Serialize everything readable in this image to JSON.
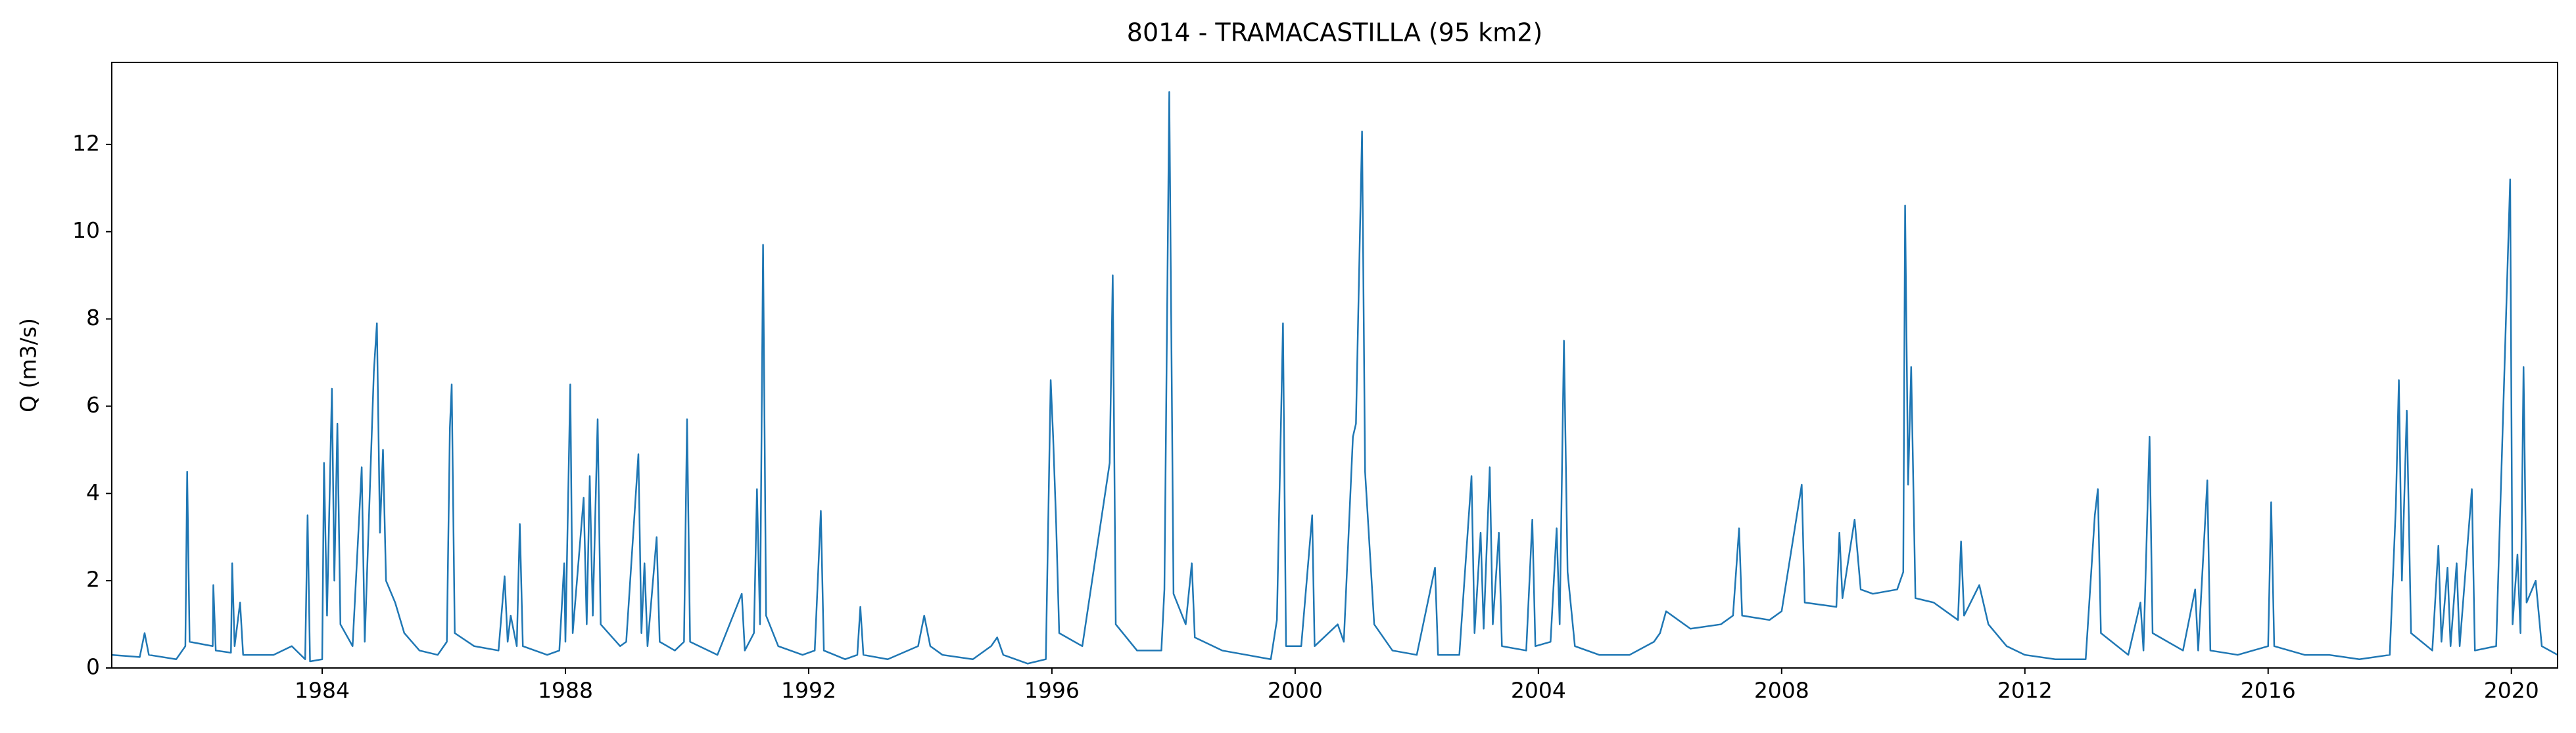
{
  "chart_data": {
    "type": "line",
    "title": "8014 - TRAMACASTILLA (95 km2)",
    "ylabel": "Q (m3/s)",
    "color": "#1f77b4",
    "xlim": [
      1980.54,
      2020.76
    ],
    "xticks": [
      1984,
      1988,
      1992,
      1996,
      2000,
      2004,
      2008,
      2012,
      2016,
      2020
    ],
    "ylim": [
      0,
      13.88
    ],
    "yticks": [
      0,
      2,
      4,
      6,
      8,
      10,
      12
    ],
    "x": [
      1980.54,
      1981.0,
      1981.08,
      1981.15,
      1981.6,
      1981.75,
      1981.78,
      1981.82,
      1982.2,
      1982.21,
      1982.25,
      1982.5,
      1982.52,
      1982.56,
      1982.65,
      1982.7,
      1983.2,
      1983.5,
      1983.72,
      1983.76,
      1983.8,
      1984.0,
      1984.03,
      1984.08,
      1984.16,
      1984.2,
      1984.25,
      1984.3,
      1984.5,
      1984.65,
      1984.7,
      1984.85,
      1984.9,
      1984.95,
      1985.0,
      1985.05,
      1985.2,
      1985.35,
      1985.6,
      1985.9,
      1986.05,
      1986.1,
      1986.13,
      1986.18,
      1986.5,
      1986.9,
      1987.0,
      1987.05,
      1987.1,
      1987.2,
      1987.25,
      1987.3,
      1987.7,
      1987.9,
      1987.98,
      1988.0,
      1988.08,
      1988.12,
      1988.3,
      1988.35,
      1988.4,
      1988.45,
      1988.53,
      1988.58,
      1988.9,
      1989.0,
      1989.2,
      1989.25,
      1989.3,
      1989.35,
      1989.5,
      1989.55,
      1989.8,
      1989.95,
      1990.0,
      1990.05,
      1990.5,
      1990.9,
      1990.95,
      1991.1,
      1991.15,
      1991.2,
      1991.25,
      1991.3,
      1991.5,
      1991.9,
      1992.1,
      1992.2,
      1992.25,
      1992.6,
      1992.8,
      1992.85,
      1992.9,
      1993.3,
      1993.8,
      1993.9,
      1994.0,
      1994.2,
      1994.7,
      1995.0,
      1995.1,
      1995.2,
      1995.6,
      1995.9,
      1995.98,
      1996.02,
      1996.07,
      1996.12,
      1996.5,
      1996.95,
      1997.0,
      1997.05,
      1997.4,
      1997.8,
      1997.85,
      1997.93,
      1998.0,
      1998.2,
      1998.3,
      1998.35,
      1998.8,
      1999.2,
      1999.6,
      1999.7,
      1999.8,
      1999.85,
      2000.1,
      2000.28,
      2000.32,
      2000.7,
      2000.8,
      2000.95,
      2001.0,
      2001.1,
      2001.15,
      2001.3,
      2001.6,
      2002.0,
      2002.3,
      2002.35,
      2002.7,
      2002.9,
      2002.95,
      2003.05,
      2003.1,
      2003.2,
      2003.25,
      2003.35,
      2003.4,
      2003.8,
      2003.9,
      2003.95,
      2004.2,
      2004.3,
      2004.35,
      2004.42,
      2004.48,
      2004.6,
      2005.0,
      2005.5,
      2005.9,
      2006.0,
      2006.1,
      2006.5,
      2007.0,
      2007.2,
      2007.3,
      2007.35,
      2007.8,
      2008.0,
      2008.33,
      2008.38,
      2008.9,
      2008.95,
      2009.0,
      2009.2,
      2009.3,
      2009.5,
      2009.9,
      2010.0,
      2010.03,
      2010.08,
      2010.13,
      2010.2,
      2010.5,
      2010.9,
      2010.95,
      2011.0,
      2011.25,
      2011.4,
      2011.7,
      2012.0,
      2012.5,
      2013.0,
      2013.15,
      2013.2,
      2013.25,
      2013.7,
      2013.9,
      2013.95,
      2014.05,
      2014.1,
      2014.6,
      2014.8,
      2014.85,
      2015.0,
      2015.05,
      2015.5,
      2016.0,
      2016.05,
      2016.1,
      2016.6,
      2017.0,
      2017.5,
      2018.0,
      2018.1,
      2018.15,
      2018.2,
      2018.28,
      2018.35,
      2018.7,
      2018.8,
      2018.85,
      2018.95,
      2019.0,
      2019.1,
      2019.15,
      2019.35,
      2019.4,
      2019.75,
      2019.98,
      2020.02,
      2020.1,
      2020.15,
      2020.2,
      2020.25,
      2020.4,
      2020.5,
      2020.76
    ],
    "values": [
      0.3,
      0.25,
      0.8,
      0.3,
      0.2,
      0.5,
      4.5,
      0.6,
      0.5,
      1.9,
      0.4,
      0.35,
      2.4,
      0.5,
      1.5,
      0.3,
      0.3,
      0.5,
      0.2,
      3.5,
      0.15,
      0.2,
      4.7,
      1.2,
      6.4,
      2.0,
      5.6,
      1.0,
      0.5,
      4.6,
      0.6,
      6.8,
      7.9,
      3.1,
      5.0,
      2.0,
      1.5,
      0.8,
      0.4,
      0.3,
      0.6,
      5.5,
      6.5,
      0.8,
      0.5,
      0.4,
      2.1,
      0.6,
      1.2,
      0.5,
      3.3,
      0.5,
      0.3,
      0.4,
      2.4,
      0.6,
      6.5,
      0.8,
      3.9,
      1.0,
      4.4,
      1.2,
      5.7,
      1.0,
      0.5,
      0.6,
      4.9,
      0.8,
      2.4,
      0.5,
      3.0,
      0.6,
      0.4,
      0.6,
      5.7,
      0.6,
      0.3,
      1.7,
      0.4,
      0.8,
      4.1,
      1.0,
      9.7,
      1.2,
      0.5,
      0.3,
      0.4,
      3.6,
      0.4,
      0.2,
      0.3,
      1.4,
      0.3,
      0.2,
      0.5,
      1.2,
      0.5,
      0.3,
      0.2,
      0.5,
      0.7,
      0.3,
      0.1,
      0.2,
      6.6,
      5.3,
      3.3,
      0.8,
      0.5,
      4.7,
      9.0,
      1.0,
      0.4,
      0.4,
      1.8,
      13.2,
      1.7,
      1.0,
      2.4,
      0.7,
      0.4,
      0.3,
      0.2,
      1.1,
      7.9,
      0.5,
      0.5,
      3.5,
      0.5,
      1.0,
      0.6,
      5.3,
      5.6,
      12.3,
      4.5,
      1.0,
      0.4,
      0.3,
      2.3,
      0.3,
      0.3,
      4.4,
      0.8,
      3.1,
      0.9,
      4.6,
      1.0,
      3.1,
      0.5,
      0.4,
      3.4,
      0.5,
      0.6,
      3.2,
      1.0,
      7.5,
      2.2,
      0.5,
      0.3,
      0.3,
      0.6,
      0.8,
      1.3,
      0.9,
      1.0,
      1.2,
      3.2,
      1.2,
      1.1,
      1.3,
      4.2,
      1.5,
      1.4,
      3.1,
      1.6,
      3.4,
      1.8,
      1.7,
      1.8,
      2.2,
      10.6,
      4.2,
      6.9,
      1.6,
      1.5,
      1.1,
      2.9,
      1.2,
      1.9,
      1.0,
      0.5,
      0.3,
      0.2,
      0.2,
      3.5,
      4.1,
      0.8,
      0.3,
      1.5,
      0.4,
      5.3,
      0.8,
      0.4,
      1.8,
      0.4,
      4.3,
      0.4,
      0.3,
      0.5,
      3.8,
      0.5,
      0.3,
      0.3,
      0.2,
      0.3,
      3.7,
      6.6,
      2.0,
      5.9,
      0.8,
      0.4,
      2.8,
      0.6,
      2.3,
      0.5,
      2.4,
      0.5,
      4.1,
      0.4,
      0.5,
      11.2,
      1.0,
      2.6,
      0.8,
      6.9,
      1.5,
      2.0,
      0.5,
      0.3
    ]
  }
}
